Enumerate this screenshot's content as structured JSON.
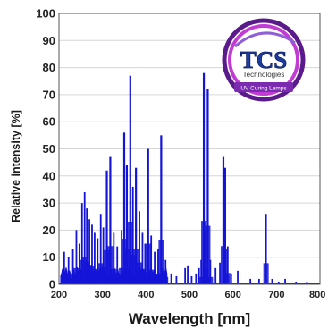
{
  "chart_data": {
    "type": "line",
    "title": "",
    "xlabel": "Wavelength [nm]",
    "ylabel": "Relative intensity [%]",
    "xlim": [
      200,
      800
    ],
    "ylim": [
      0,
      100
    ],
    "x_ticks": [
      "200",
      "300",
      "400",
      "500",
      "600",
      "700",
      "800"
    ],
    "y_ticks": [
      "0",
      "10",
      "20",
      "30",
      "40",
      "50",
      "60",
      "70",
      "80",
      "90",
      "100"
    ],
    "grid": true,
    "series_color": "#1414d8",
    "peaks": [
      {
        "x": 212,
        "y": 12
      },
      {
        "x": 222,
        "y": 10
      },
      {
        "x": 232,
        "y": 13
      },
      {
        "x": 240,
        "y": 20
      },
      {
        "x": 247,
        "y": 15
      },
      {
        "x": 253,
        "y": 30
      },
      {
        "x": 259,
        "y": 34
      },
      {
        "x": 264,
        "y": 28
      },
      {
        "x": 270,
        "y": 24
      },
      {
        "x": 276,
        "y": 22
      },
      {
        "x": 282,
        "y": 19
      },
      {
        "x": 289,
        "y": 17
      },
      {
        "x": 296,
        "y": 26
      },
      {
        "x": 302,
        "y": 21
      },
      {
        "x": 310,
        "y": 42
      },
      {
        "x": 318,
        "y": 47
      },
      {
        "x": 326,
        "y": 19
      },
      {
        "x": 334,
        "y": 14
      },
      {
        "x": 344,
        "y": 20
      },
      {
        "x": 350,
        "y": 56
      },
      {
        "x": 356,
        "y": 44
      },
      {
        "x": 364,
        "y": 77
      },
      {
        "x": 370,
        "y": 36
      },
      {
        "x": 377,
        "y": 43
      },
      {
        "x": 385,
        "y": 27
      },
      {
        "x": 392,
        "y": 19
      },
      {
        "x": 398,
        "y": 15
      },
      {
        "x": 405,
        "y": 50
      },
      {
        "x": 412,
        "y": 18
      },
      {
        "x": 420,
        "y": 12
      },
      {
        "x": 428,
        "y": 13
      },
      {
        "x": 435,
        "y": 55
      },
      {
        "x": 445,
        "y": 9
      },
      {
        "x": 458,
        "y": 4
      },
      {
        "x": 470,
        "y": 3
      },
      {
        "x": 490,
        "y": 6
      },
      {
        "x": 496,
        "y": 7
      },
      {
        "x": 505,
        "y": 3
      },
      {
        "x": 515,
        "y": 4
      },
      {
        "x": 522,
        "y": 6
      },
      {
        "x": 527,
        "y": 9
      },
      {
        "x": 533,
        "y": 78
      },
      {
        "x": 537,
        "y": 20
      },
      {
        "x": 542,
        "y": 72
      },
      {
        "x": 548,
        "y": 9
      },
      {
        "x": 560,
        "y": 6
      },
      {
        "x": 570,
        "y": 8
      },
      {
        "x": 578,
        "y": 47
      },
      {
        "x": 582,
        "y": 43
      },
      {
        "x": 588,
        "y": 14
      },
      {
        "x": 596,
        "y": 4
      },
      {
        "x": 611,
        "y": 5
      },
      {
        "x": 640,
        "y": 2
      },
      {
        "x": 660,
        "y": 2
      },
      {
        "x": 676,
        "y": 26
      },
      {
        "x": 690,
        "y": 2
      },
      {
        "x": 705,
        "y": 1
      },
      {
        "x": 720,
        "y": 2
      },
      {
        "x": 745,
        "y": 1
      },
      {
        "x": 770,
        "y": 1
      }
    ]
  },
  "logo": {
    "brand": "TCS",
    "sub": "Technologies",
    "ribbon": "UV Curing Lamps",
    "colors": {
      "ring_outer": "#5a1a8c",
      "ring_inner": "#c23bd4",
      "brand_fill": "#1f3d9c",
      "ribbon_fill": "#7a2bb0"
    }
  }
}
